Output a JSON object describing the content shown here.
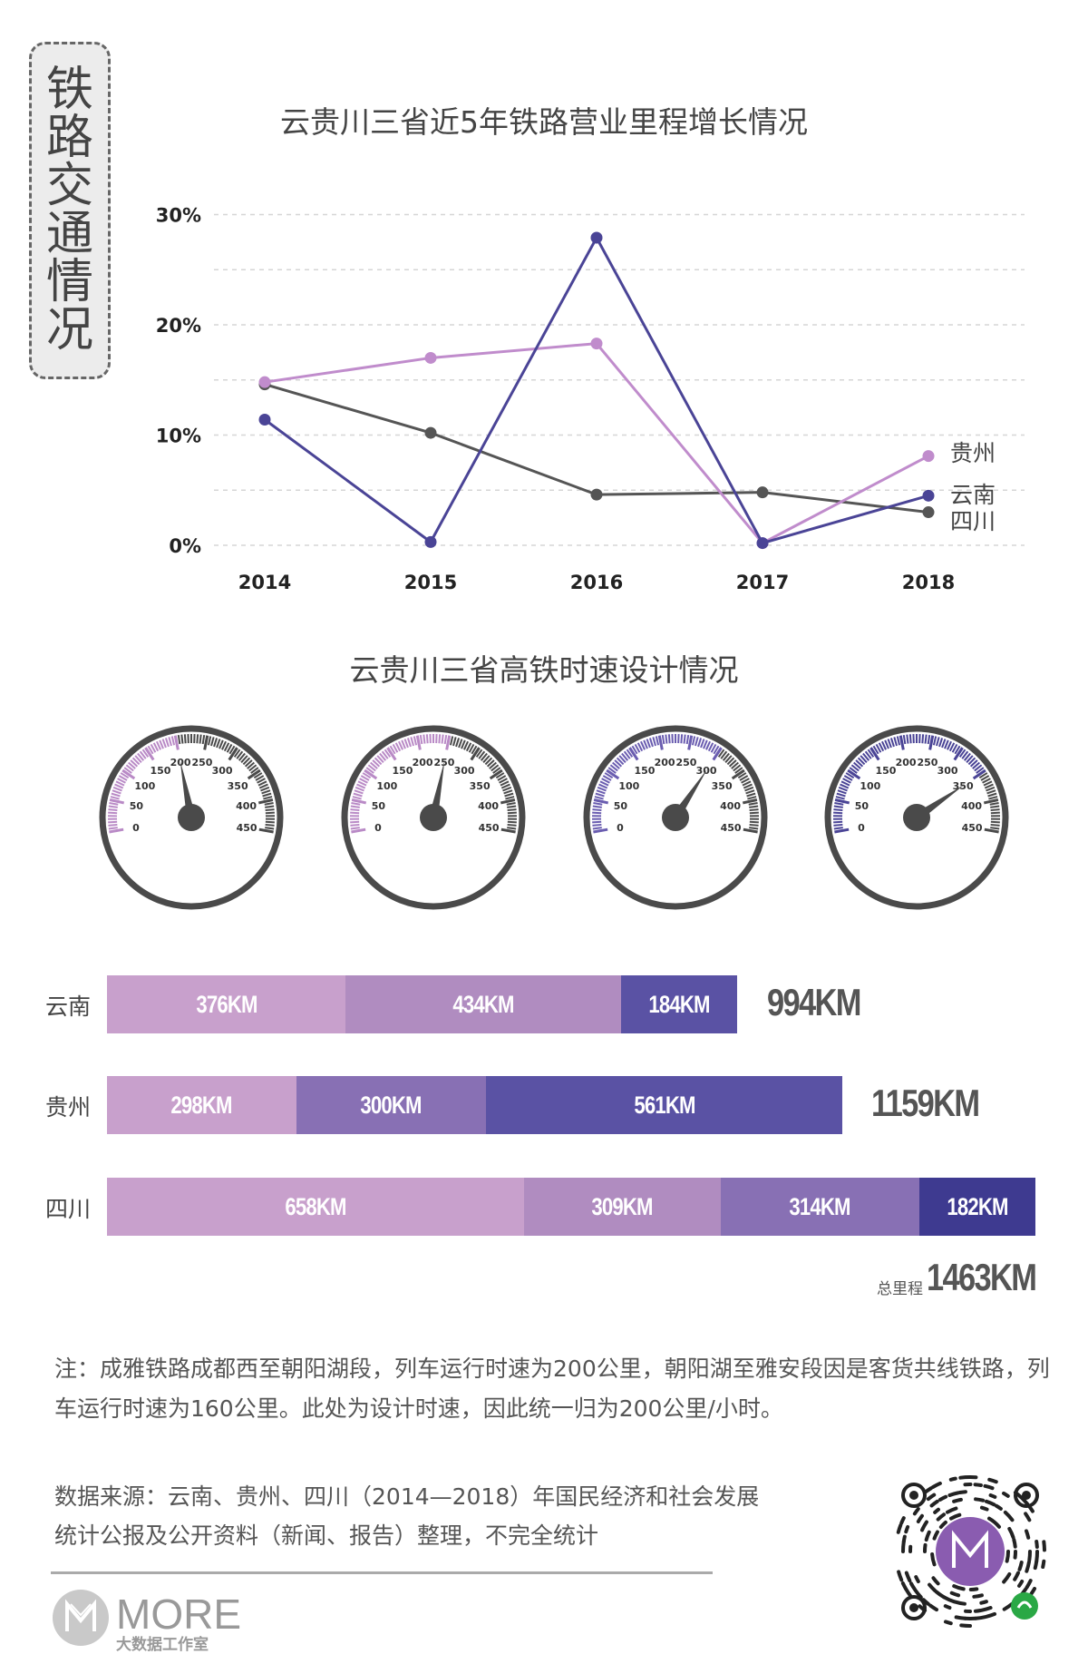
{
  "side_title": "铁路交通情况",
  "line_chart": {
    "title": "云贵川三省近5年铁路营业里程增长情况",
    "y_ticks": [
      "0%",
      "10%",
      "20%",
      "30%"
    ],
    "legend": [
      {
        "name": "贵州",
        "color": "#c08ccc"
      },
      {
        "name": "云南",
        "color": "#4a4496"
      },
      {
        "name": "四川",
        "color": "#555555"
      }
    ]
  },
  "gauge_section": {
    "title": "云贵川三省高铁时速设计情况",
    "tick_labels": [
      "0",
      "50",
      "100",
      "150",
      "200",
      "250",
      "300",
      "350",
      "400",
      "450"
    ],
    "gauges": [
      {
        "speed": 200,
        "color": "#b98ac6"
      },
      {
        "speed": 250,
        "color": "#b98ac6"
      },
      {
        "speed": 300,
        "color": "#6a5db0"
      },
      {
        "speed": 350,
        "color": "#4a4496"
      }
    ]
  },
  "bars": {
    "rows": [
      {
        "province": "云南",
        "total": "994KM",
        "segments": [
          {
            "label": "376KM",
            "value": 376,
            "color": "#c8a0cc"
          },
          {
            "label": "434KM",
            "value": 434,
            "color": "#b08cc0"
          },
          {
            "label": "184KM",
            "value": 184,
            "color": "#5a52a4"
          }
        ]
      },
      {
        "province": "贵州",
        "total": "1159KM",
        "segments": [
          {
            "label": "298KM",
            "value": 298,
            "color": "#c8a0cc"
          },
          {
            "label": "300KM",
            "value": 300,
            "color": "#8870b4"
          },
          {
            "label": "561KM",
            "value": 561,
            "color": "#5a52a4"
          }
        ]
      },
      {
        "province": "四川",
        "total": "1463KM",
        "segments": [
          {
            "label": "658KM",
            "value": 658,
            "color": "#c8a0cc"
          },
          {
            "label": "309KM",
            "value": 309,
            "color": "#b08cc0"
          },
          {
            "label": "314KM",
            "value": 314,
            "color": "#8870b4"
          },
          {
            "label": "182KM",
            "value": 182,
            "color": "#3e3a90"
          }
        ]
      }
    ],
    "total_label": "总里程"
  },
  "note": "注：成雅铁路成都西至朝阳湖段，列车运行时速为200公里，朝阳湖至雅安段因是客货共线铁路，列车运行时速为160公里。此处为设计时速，因此统一归为200公里/小时。",
  "source": "数据来源：云南、贵州、四川（2014—2018）年国民经济和社会发展统计公报及公开资料（新闻、报告）整理，不完全统计",
  "brand": {
    "name": "MORE",
    "sub": "大数据工作室"
  },
  "chart_data": [
    {
      "type": "line",
      "title": "云贵川三省近5年铁路营业里程增长情况",
      "x": [
        "2014",
        "2015",
        "2016",
        "2017",
        "2018"
      ],
      "ylim": [
        0,
        30
      ],
      "y_unit": "%",
      "grid": true,
      "legend_position": "right",
      "series": [
        {
          "name": "贵州",
          "values": [
            14.8,
            17.0,
            18.3,
            0.2,
            8.1
          ]
        },
        {
          "name": "云南",
          "values": [
            11.4,
            0.3,
            27.9,
            0.2,
            4.5
          ]
        },
        {
          "name": "四川",
          "values": [
            14.6,
            10.2,
            4.6,
            4.8,
            3.0
          ]
        }
      ]
    },
    {
      "type": "bar",
      "orientation": "horizontal-stacked",
      "categories": [
        "云南",
        "贵州",
        "四川"
      ],
      "totals": [
        994,
        1159,
        1463
      ],
      "unit": "KM"
    }
  ]
}
